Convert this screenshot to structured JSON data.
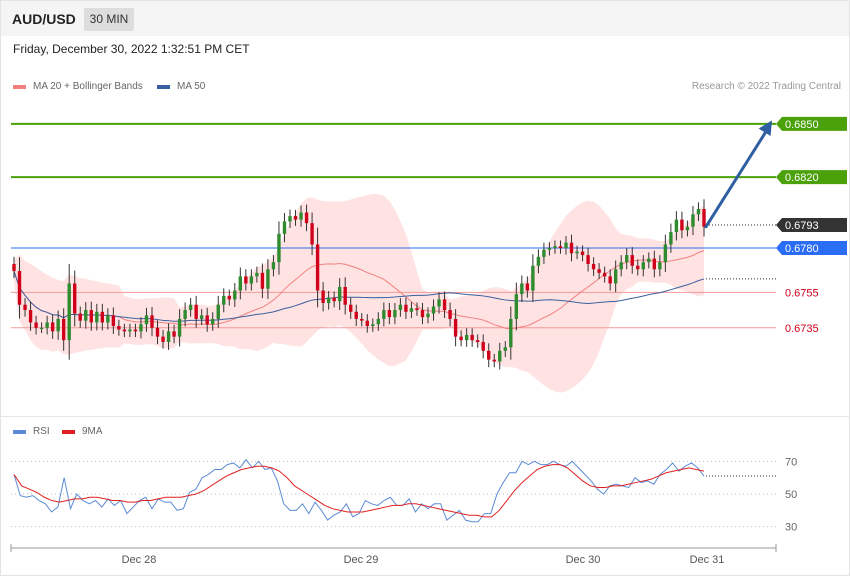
{
  "header": {
    "symbol": "AUD/USD",
    "timeframe": "30 MIN",
    "datetime": "Friday, December 30, 2022 1:32:51 PM CET"
  },
  "legend": {
    "ma20_label": "MA 20 + Bollinger Bands",
    "ma50_label": "MA 50",
    "credit": "Research © 2022 Trading Central"
  },
  "rsi_legend": {
    "rsi_label": "RSI",
    "ma_label": "9MA"
  },
  "colors": {
    "up": "#2e8b2e",
    "down": "#d0021b",
    "resistance": "#4aa10a",
    "pivot": "#2a6df4",
    "support": "#f29a9a",
    "support_text": "#d0021b",
    "current": "#333333",
    "ma20": "#f28080",
    "ma50": "#3a5fa0",
    "band": "#ffe3e3",
    "rsi": "#5b8bd6",
    "rsi_ma": "#e02020",
    "arrow": "#2f5fa0"
  },
  "chart_data": [
    {
      "type": "candlestick",
      "title": "AUD/USD 30 MIN",
      "ylim": [
        0.6692,
        0.6868
      ],
      "x_labels": [
        "Dec 28",
        "Dec 29",
        "Dec 30",
        "Dec 31"
      ],
      "levels": [
        {
          "value": 0.685,
          "label": "0.6850",
          "kind": "resistance"
        },
        {
          "value": 0.682,
          "label": "0.6820",
          "kind": "resistance"
        },
        {
          "value": 0.6793,
          "label": "0.6793",
          "kind": "current"
        },
        {
          "value": 0.678,
          "label": "0.6780",
          "kind": "pivot"
        },
        {
          "value": 0.6755,
          "label": "0.6755",
          "kind": "support"
        },
        {
          "value": 0.6735,
          "label": "0.6735",
          "kind": "support"
        }
      ],
      "target_arrow": {
        "from": 0.6792,
        "to": 0.6852
      },
      "closes": [
        0.6767,
        0.6748,
        0.6745,
        0.6738,
        0.6735,
        0.6735,
        0.6738,
        0.6733,
        0.674,
        0.6728,
        0.676,
        0.6743,
        0.6739,
        0.6745,
        0.6738,
        0.6744,
        0.6738,
        0.6742,
        0.6736,
        0.6734,
        0.6733,
        0.6734,
        0.6733,
        0.6737,
        0.6742,
        0.6735,
        0.673,
        0.6727,
        0.6733,
        0.673,
        0.674,
        0.6745,
        0.6748,
        0.674,
        0.6742,
        0.6737,
        0.674,
        0.6748,
        0.6753,
        0.6751,
        0.6756,
        0.6764,
        0.676,
        0.6764,
        0.6766,
        0.6757,
        0.6768,
        0.6772,
        0.6788,
        0.6795,
        0.6798,
        0.6796,
        0.68,
        0.6794,
        0.6782,
        0.6756,
        0.6749,
        0.6752,
        0.675,
        0.6758,
        0.6748,
        0.6744,
        0.674,
        0.6739,
        0.6736,
        0.6737,
        0.674,
        0.6745,
        0.6741,
        0.6745,
        0.6748,
        0.6744,
        0.6746,
        0.6745,
        0.6741,
        0.6743,
        0.6747,
        0.6751,
        0.6745,
        0.674,
        0.673,
        0.6728,
        0.6731,
        0.6728,
        0.6727,
        0.6722,
        0.6717,
        0.6716,
        0.6722,
        0.6724,
        0.674,
        0.6754,
        0.676,
        0.6756,
        0.677,
        0.6775,
        0.6779,
        0.678,
        0.6781,
        0.678,
        0.6783,
        0.6777,
        0.6778,
        0.6776,
        0.6771,
        0.6768,
        0.6766,
        0.6764,
        0.676,
        0.6768,
        0.6772,
        0.6776,
        0.677,
        0.6768,
        0.6772,
        0.6774,
        0.6768,
        0.6772,
        0.6782,
        0.6789,
        0.6796,
        0.679,
        0.6792,
        0.6799,
        0.6802,
        0.6792
      ]
    },
    {
      "type": "line",
      "title": "RSI",
      "ylim": [
        20,
        80
      ],
      "y_ticks": [
        30,
        50,
        70
      ],
      "series": [
        {
          "name": "RSI",
          "values": [
            62,
            49,
            48,
            49,
            46,
            44,
            39,
            42,
            60,
            41,
            50,
            46,
            44,
            46,
            42,
            47,
            43,
            46,
            38,
            42,
            46,
            48,
            41,
            47,
            45,
            45,
            40,
            41,
            51,
            53,
            60,
            62,
            65,
            65,
            68,
            69,
            66,
            71,
            66,
            70,
            65,
            66,
            58,
            44,
            40,
            40,
            44,
            38,
            45,
            40,
            34,
            37,
            39,
            44,
            36,
            38,
            46,
            44,
            43,
            46,
            48,
            43,
            43,
            47,
            39,
            44,
            41,
            44,
            44,
            34,
            37,
            40,
            34,
            33,
            33,
            38,
            38,
            50,
            57,
            63,
            63,
            70,
            68,
            70,
            68,
            68,
            70,
            68,
            67,
            70,
            66,
            62,
            58,
            53,
            50,
            55,
            56,
            55,
            54,
            60,
            57,
            58,
            56,
            62,
            65,
            69,
            64,
            67,
            69,
            66,
            61
          ]
        },
        {
          "name": "9MA",
          "values": [
            62,
            55,
            53,
            51,
            48,
            46,
            45,
            46,
            47,
            47,
            48,
            48,
            47,
            46,
            46,
            45,
            45,
            46,
            46,
            47,
            48,
            48,
            48,
            49,
            50,
            52,
            55,
            58,
            61,
            63,
            65,
            66,
            67,
            67,
            66,
            64,
            60,
            55,
            52,
            49,
            46,
            43,
            41,
            40,
            39,
            39,
            39,
            40,
            41,
            42,
            43,
            43,
            44,
            44,
            43,
            42,
            41,
            40,
            39,
            38,
            37,
            37,
            36,
            36,
            40,
            46,
            52,
            57,
            61,
            65,
            67,
            68,
            68,
            66,
            62,
            58,
            55,
            54,
            54,
            55,
            55,
            56,
            57,
            58,
            59,
            61,
            63,
            64,
            65,
            66,
            65,
            64
          ]
        }
      ]
    }
  ]
}
